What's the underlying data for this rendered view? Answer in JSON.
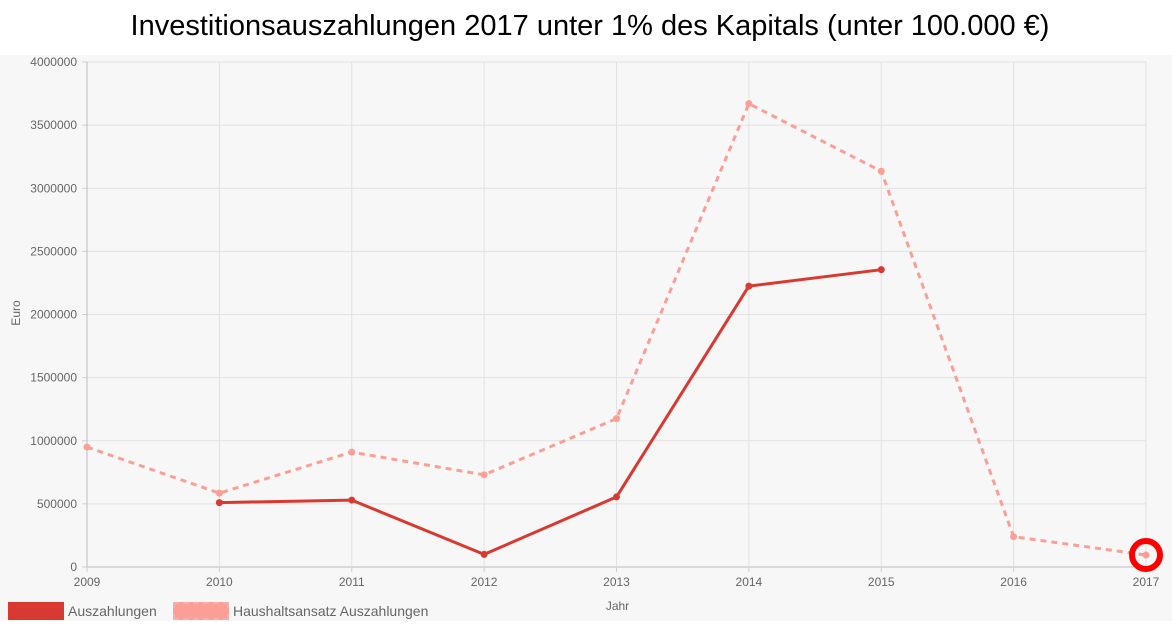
{
  "chart_data": {
    "type": "line",
    "title": "Investitionsauszahlungen 2017 unter 1% des Kapitals (unter 100.000 €)",
    "xlabel": "Jahr",
    "ylabel": "Euro",
    "categories": [
      "2009",
      "2010",
      "2011",
      "2012",
      "2013",
      "2014",
      "2015",
      "2016",
      "2017"
    ],
    "ylim": [
      0,
      4000000
    ],
    "yticks": [
      "0",
      "500000",
      "1000000",
      "1500000",
      "2000000",
      "2500000",
      "3000000",
      "3500000",
      "4000000"
    ],
    "grid": true,
    "legend_position": "bottom-left",
    "series": [
      {
        "name": "Auszahlungen",
        "color": "#d83a32",
        "style": "solid",
        "values": [
          null,
          510000,
          530000,
          100000,
          555000,
          2225000,
          2355000,
          null,
          null
        ]
      },
      {
        "name": "Haushaltsansatz Auszahlungen",
        "color": "#fa9e96",
        "style": "dashed",
        "values": [
          950000,
          585000,
          910000,
          730000,
          1175000,
          3670000,
          3135000,
          240000,
          95000
        ]
      }
    ],
    "annotations": [
      {
        "type": "circle-highlight",
        "target": "2017",
        "series": "Haushaltsansatz Auszahlungen",
        "color": "#ff0000"
      }
    ]
  }
}
